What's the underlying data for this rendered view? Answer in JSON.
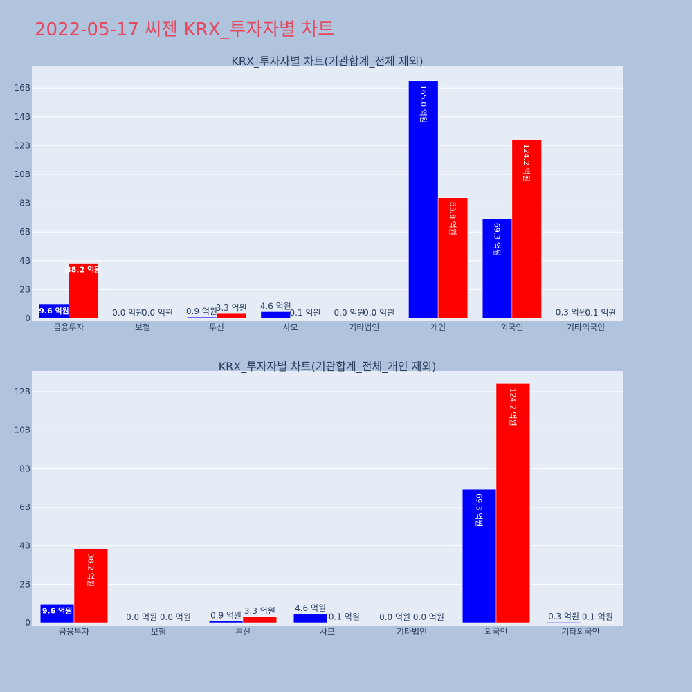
{
  "page": {
    "title": "2022-05-17 씨젠 KRX_투자자별 차트"
  },
  "colors": {
    "buy": "#0000ff",
    "sell": "#ff0000",
    "plot_bg": "#e5ecf6",
    "paper_bg": "#b0c4de",
    "title": "#e8475f"
  },
  "chart_data": [
    {
      "type": "bar",
      "title": "KRX_투자자별 차트(기관합계_전체 제외)",
      "categories": [
        "금융투자",
        "보험",
        "투신",
        "사모",
        "기타법인",
        "개인",
        "외국인",
        "기타외국인"
      ],
      "series": [
        {
          "values": [
            960000000,
            0,
            90000000,
            460000000,
            0,
            16500000000,
            6930000000,
            30000000
          ],
          "labels": [
            "9.6 억원",
            "0.0 억원",
            "0.9 억원",
            "4.6 억원",
            "0.0 억원",
            "165.0 억원",
            "69.3 억원",
            "0.3 억원"
          ]
        },
        {
          "values": [
            3820000000,
            0,
            330000000,
            10000000,
            0,
            8380000000,
            12420000000,
            10000000
          ],
          "labels": [
            "38.2 억원",
            "0.0 억원",
            "3.3 억원",
            "0.1 억원",
            "0.0 억원",
            "83.8 억원",
            "124.2 억원",
            "0.1 억원"
          ]
        }
      ],
      "ylim": [
        0,
        17500000000
      ],
      "yticks": [
        0,
        2000000000,
        4000000000,
        6000000000,
        8000000000,
        10000000000,
        12000000000,
        14000000000,
        16000000000
      ],
      "ytick_labels": [
        "0",
        "2B",
        "4B",
        "6B",
        "8B",
        "10B",
        "12B",
        "14B",
        "16B"
      ],
      "grid": true
    },
    {
      "type": "bar",
      "title": "KRX_투자자별 차트(기관합계_전체_개인 제외)",
      "categories": [
        "금융투자",
        "보험",
        "투신",
        "사모",
        "기타법인",
        "외국인",
        "기타외국인"
      ],
      "series": [
        {
          "values": [
            960000000,
            0,
            90000000,
            460000000,
            0,
            6930000000,
            30000000
          ],
          "labels": [
            "9.6 억원",
            "0.0 억원",
            "0.9 억원",
            "4.6 억원",
            "0.0 억원",
            "69.3 억원",
            "0.3 억원"
          ]
        },
        {
          "values": [
            3820000000,
            0,
            330000000,
            10000000,
            0,
            12420000000,
            10000000
          ],
          "labels": [
            "38.2 억원",
            "0.0 억원",
            "3.3 억원",
            "0.1 억원",
            "0.0 억원",
            "124.2 억원",
            "0.1 억원"
          ]
        }
      ],
      "ylim": [
        0,
        13080000000
      ],
      "yticks": [
        0,
        2000000000,
        4000000000,
        6000000000,
        8000000000,
        10000000000,
        12000000000
      ],
      "ytick_labels": [
        "0",
        "2B",
        "4B",
        "6B",
        "8B",
        "10B",
        "12B"
      ],
      "grid": true
    }
  ]
}
